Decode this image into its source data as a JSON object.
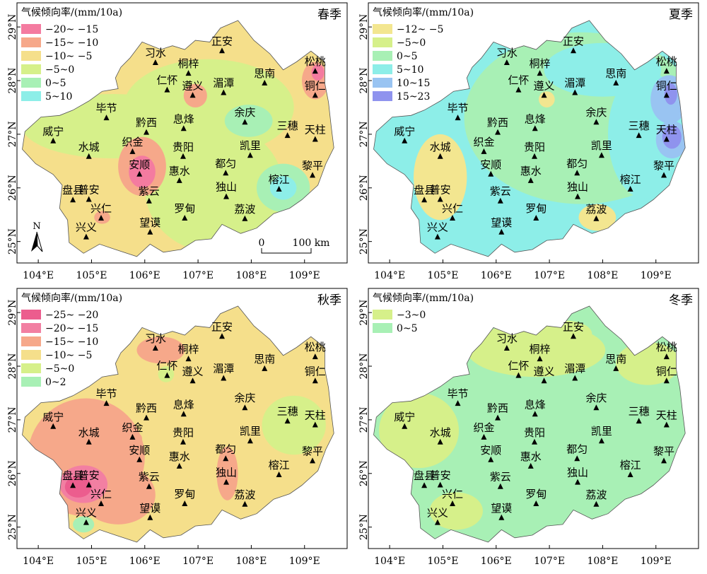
{
  "panels": [
    {
      "season": "春季",
      "legend_title": "气候倾向率/(mm/10a)",
      "legend": [
        {
          "label": "−20~ −15",
          "color": "#f47ba0"
        },
        {
          "label": "−15~ −10",
          "color": "#f6a88a"
        },
        {
          "label": "−10~ −5",
          "color": "#f5df8b"
        },
        {
          "label": "−5~0",
          "color": "#d6f08a"
        },
        {
          "label": "0~5",
          "color": "#a8f0b5"
        },
        {
          "label": "5~10",
          "color": "#8deee8"
        }
      ],
      "north_label": "N",
      "scale_labels": [
        "0",
        "100 km"
      ]
    },
    {
      "season": "夏季",
      "legend_title": "气候倾向率/(mm/10a)",
      "legend": [
        {
          "label": "−12~ −5",
          "color": "#f3e690"
        },
        {
          "label": "−5~0",
          "color": "#d6f08a"
        },
        {
          "label": "0~5",
          "color": "#a8f0b5"
        },
        {
          "label": "5~10",
          "color": "#8deee8"
        },
        {
          "label": "10~15",
          "color": "#99c4f2"
        },
        {
          "label": "15~23",
          "color": "#8f93ee"
        }
      ]
    },
    {
      "season": "秋季",
      "legend_title": "气候倾向率/(mm/10a)",
      "legend": [
        {
          "label": "−25~ −20",
          "color": "#ec5d8e"
        },
        {
          "label": "−20~ −15",
          "color": "#f27fa2"
        },
        {
          "label": "−15~ −10",
          "color": "#f6a88a"
        },
        {
          "label": "−10~ −5",
          "color": "#f5df8b"
        },
        {
          "label": "−5~0",
          "color": "#d6f08a"
        },
        {
          "label": "0~2",
          "color": "#a8f0b5"
        }
      ]
    },
    {
      "season": "冬季",
      "legend_title": "气候倾向率/(mm/10a)",
      "legend": [
        {
          "label": "−3~0",
          "color": "#d6f08a"
        },
        {
          "label": "0~5",
          "color": "#a8f0b5"
        }
      ]
    }
  ],
  "x_ticks": [
    "104°E",
    "105°E",
    "106°E",
    "107°E",
    "108°E",
    "109°E"
  ],
  "y_ticks": [
    "29°N",
    "28°N",
    "27°N",
    "26°N",
    "25°N"
  ],
  "stations": [
    {
      "name": "习水",
      "lon": 106.2,
      "lat": 28.33
    },
    {
      "name": "正安",
      "lon": 107.45,
      "lat": 28.55
    },
    {
      "name": "松桃",
      "lon": 109.2,
      "lat": 28.17
    },
    {
      "name": "桐梓",
      "lon": 106.82,
      "lat": 28.13
    },
    {
      "name": "思南",
      "lon": 108.25,
      "lat": 27.95
    },
    {
      "name": "仁怀",
      "lon": 106.42,
      "lat": 27.82
    },
    {
      "name": "遵义",
      "lon": 106.9,
      "lat": 27.72
    },
    {
      "name": "湄潭",
      "lon": 107.48,
      "lat": 27.77
    },
    {
      "name": "铜仁",
      "lon": 109.2,
      "lat": 27.72
    },
    {
      "name": "毕节",
      "lon": 105.28,
      "lat": 27.3
    },
    {
      "name": "黔西",
      "lon": 106.03,
      "lat": 27.03
    },
    {
      "name": "息烽",
      "lon": 106.73,
      "lat": 27.1
    },
    {
      "name": "余庆",
      "lon": 107.88,
      "lat": 27.22
    },
    {
      "name": "三穗",
      "lon": 108.68,
      "lat": 26.97
    },
    {
      "name": "天柱",
      "lon": 109.2,
      "lat": 26.9
    },
    {
      "name": "威宁",
      "lon": 104.28,
      "lat": 26.87
    },
    {
      "name": "水城",
      "lon": 104.95,
      "lat": 26.58
    },
    {
      "name": "织金",
      "lon": 105.77,
      "lat": 26.67
    },
    {
      "name": "贵阳",
      "lon": 106.72,
      "lat": 26.58
    },
    {
      "name": "凯里",
      "lon": 107.98,
      "lat": 26.6
    },
    {
      "name": "安顺",
      "lon": 105.9,
      "lat": 26.25
    },
    {
      "name": "惠水",
      "lon": 106.65,
      "lat": 26.13
    },
    {
      "name": "都匀",
      "lon": 107.52,
      "lat": 26.27
    },
    {
      "name": "黎平",
      "lon": 109.15,
      "lat": 26.23
    },
    {
      "name": "榕江",
      "lon": 108.52,
      "lat": 25.97
    },
    {
      "name": "盘县",
      "lon": 104.65,
      "lat": 25.77
    },
    {
      "name": "普安",
      "lon": 104.95,
      "lat": 25.78
    },
    {
      "name": "紫云",
      "lon": 106.08,
      "lat": 25.75
    },
    {
      "name": "独山",
      "lon": 107.53,
      "lat": 25.83
    },
    {
      "name": "兴仁",
      "lon": 105.18,
      "lat": 25.43
    },
    {
      "name": "罗甸",
      "lon": 106.75,
      "lat": 25.43
    },
    {
      "name": "荔波",
      "lon": 107.88,
      "lat": 25.42
    },
    {
      "name": "望谟",
      "lon": 106.1,
      "lat": 25.17
    },
    {
      "name": "兴义",
      "lon": 104.9,
      "lat": 25.08
    }
  ]
}
